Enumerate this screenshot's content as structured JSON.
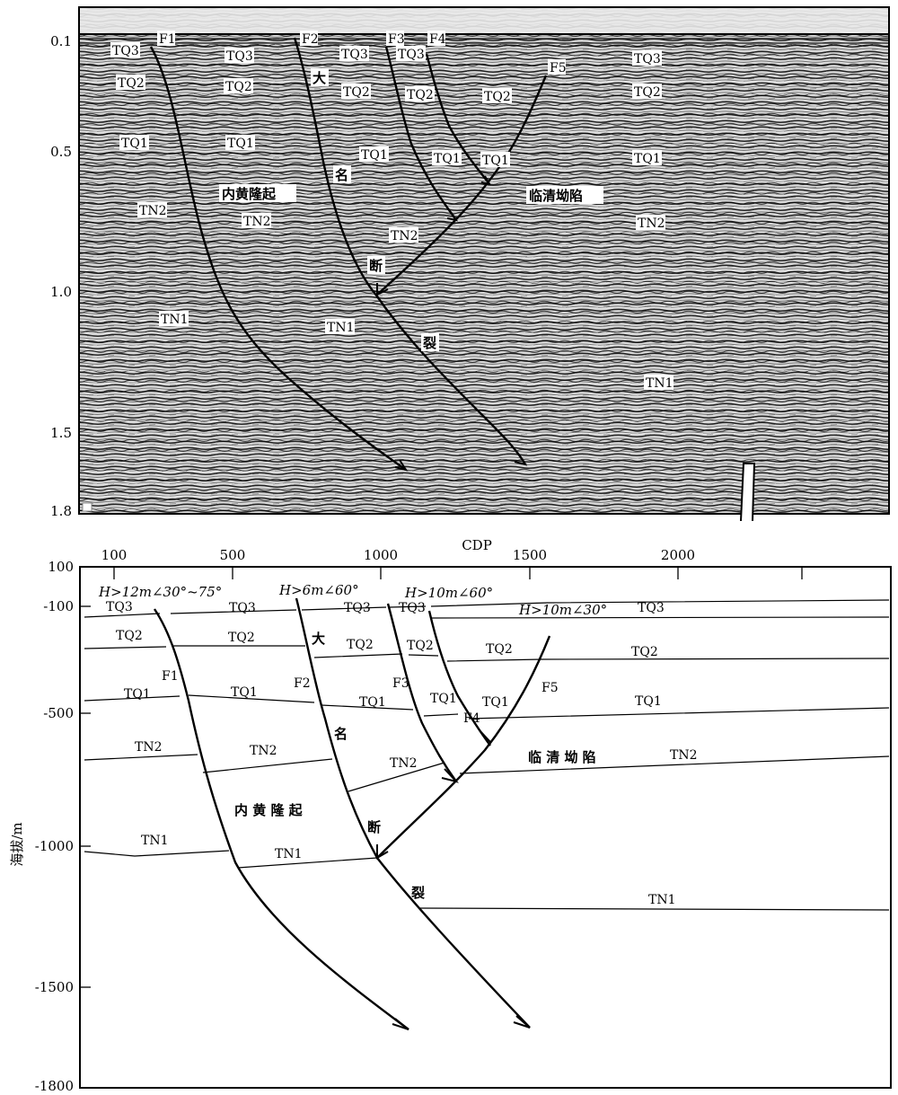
{
  "upper_panel": {
    "time_ticks": [
      "0.1",
      "0.5",
      "1.0",
      "1.5",
      "1.8"
    ],
    "faults": [
      "F1",
      "F2",
      "F3",
      "F4",
      "F5"
    ],
    "layers": [
      "TQ3",
      "TQ2",
      "TQ1",
      "TN2",
      "TN1"
    ],
    "cn_labels": {
      "da": "大",
      "ming": "名",
      "duan": "断",
      "lie": "裂",
      "neihuang": "内黄隆起",
      "linqing": "临清坳陷"
    }
  },
  "lower_panel": {
    "x_title": "CDP",
    "x_ticks": [
      "100",
      "500",
      "1000",
      "1500",
      "2000"
    ],
    "y_title": "海拔/m",
    "y_ticks": [
      "100",
      "-100",
      "-500",
      "-1000",
      "-1500",
      "-1800"
    ],
    "notes": [
      "H>12m∠30°~75°",
      "H>6m∠60°",
      "H>10m∠60°",
      "H>10m∠30°"
    ],
    "faults": [
      "F1",
      "F2",
      "F3",
      "F4",
      "F5"
    ],
    "layers": [
      "TQ3",
      "TQ2",
      "TQ1",
      "TN2",
      "TN1"
    ],
    "cn_labels": {
      "da": "大",
      "ming": "名",
      "duan": "断",
      "lie": "裂",
      "neihuang": "内 黄 隆 起",
      "linqing": "临 清 坳 陷"
    }
  }
}
